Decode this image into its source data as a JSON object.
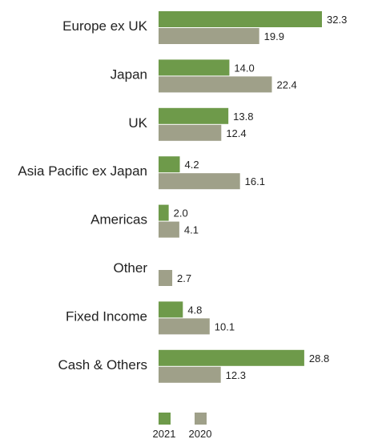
{
  "chart_data": {
    "type": "bar",
    "orientation": "horizontal",
    "categories": [
      "Europe ex UK",
      "Japan",
      "UK",
      "Asia Pacific ex Japan",
      "Americas",
      "Other",
      "Fixed Income",
      "Cash & Others"
    ],
    "series": [
      {
        "name": "2021",
        "color": "#6e9a4a",
        "values": [
          32.3,
          14.0,
          13.8,
          4.2,
          2.0,
          null,
          4.8,
          28.8
        ],
        "labels": [
          "32.3",
          "14.0",
          "13.8",
          "4.2",
          "2.0",
          "",
          "4.8",
          "28.8"
        ]
      },
      {
        "name": "2020",
        "color": "#9fa089",
        "values": [
          19.9,
          22.4,
          12.4,
          16.1,
          4.1,
          2.7,
          10.1,
          12.3
        ],
        "labels": [
          "19.9",
          "22.4",
          "12.4",
          "16.1",
          "4.1",
          "2.7",
          "10.1",
          "12.3"
        ]
      }
    ],
    "xlim": [
      0,
      35
    ],
    "grid": false,
    "legend_position": "bottom"
  }
}
